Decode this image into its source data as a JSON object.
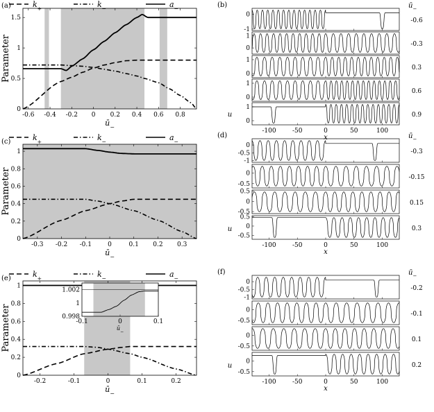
{
  "figure": {
    "panels": [
      {
        "id": "a",
        "panel_label": "(a)",
        "legend": [
          "k_+",
          "k_-",
          "a_-"
        ],
        "ylabel": "Parameter",
        "xlabel": "ū_-",
        "xticks": [
          "-0.6",
          "-0.4",
          "-0.2",
          "0",
          "0.2",
          "0.4",
          "0.6",
          "0.8"
        ],
        "yticks": [
          "0",
          "0.5",
          "1",
          "1.5"
        ]
      },
      {
        "id": "c",
        "panel_label": "(c)",
        "legend": [
          "k_+",
          "k_-",
          "a_-"
        ],
        "ylabel": "Parameter",
        "xlabel": "ū_-",
        "xticks": [
          "-0.3",
          "-0.2",
          "-0.1",
          "0",
          "0.1",
          "0.2",
          "0.3"
        ],
        "yticks": [
          "0",
          "0.2",
          "0.4",
          "0.6",
          "0.8",
          "1"
        ]
      },
      {
        "id": "e",
        "panel_label": "(e)",
        "legend": [
          "k_+",
          "k_-",
          "a_-"
        ],
        "ylabel": "Parameter",
        "xlabel": "ū_-",
        "xticks": [
          "-0.2",
          "-0.1",
          "0",
          "0.1",
          "0.2"
        ],
        "yticks": [
          "0",
          "0.2",
          "0.4",
          "0.6",
          "0.8",
          "1"
        ],
        "inset": {
          "xticks": [
            "-0.1",
            "0",
            "0.1"
          ],
          "yticks": [
            "0.998",
            "1",
            "1.002"
          ],
          "xlabel": "ū_-"
        }
      },
      {
        "id": "b",
        "panel_label": "(b)",
        "header": "ū_-",
        "ylabel": "u",
        "xlabel": "x",
        "xticks": [
          "-100",
          "-50",
          "0",
          "50",
          "100"
        ],
        "rows": [
          "-0.6",
          "-0.3",
          "0.3",
          "0.6",
          "0.9"
        ]
      },
      {
        "id": "d",
        "panel_label": "(d)",
        "header": "ū_-",
        "ylabel": "u",
        "xlabel": "x",
        "xticks": [
          "-100",
          "-50",
          "0",
          "50",
          "100"
        ],
        "rows": [
          "-0.3",
          "-0.15",
          "0.15",
          "0.3"
        ]
      },
      {
        "id": "f",
        "panel_label": "(f)",
        "header": "ū_-",
        "ylabel": "u",
        "xlabel": "x",
        "xticks": [
          "-100",
          "-50",
          "0",
          "50",
          "100"
        ],
        "rows": [
          "-0.2",
          "-0.1",
          "0.1",
          "0.2"
        ]
      }
    ]
  },
  "chart_data": [
    {
      "panel": "(a)",
      "type": "line",
      "xlabel": "ū_-",
      "ylabel": "Parameter",
      "xlim": [
        -0.65,
        0.95
      ],
      "ylim": [
        0,
        1.65
      ],
      "shaded_intervals": [
        [
          -0.45,
          -0.41
        ],
        [
          -0.3,
          0.47
        ],
        [
          0.61,
          0.68
        ]
      ],
      "series": [
        {
          "name": "k_+",
          "style": "dashed",
          "x": [
            -0.65,
            -0.3,
            -0.2,
            -0.1,
            0.0,
            0.1,
            0.2,
            0.3,
            0.4,
            0.47,
            0.6,
            0.8,
            0.95
          ],
          "y": [
            0.0,
            0.45,
            0.52,
            0.6,
            0.67,
            0.72,
            0.76,
            0.79,
            0.8,
            0.8,
            0.8,
            0.8,
            0.8
          ]
        },
        {
          "name": "k_-",
          "style": "dashdot",
          "x": [
            -0.65,
            -0.4,
            -0.3,
            -0.2,
            -0.1,
            0.0,
            0.1,
            0.2,
            0.3,
            0.4,
            0.47,
            0.6,
            0.7,
            0.8,
            0.9,
            0.95
          ],
          "y": [
            0.72,
            0.72,
            0.72,
            0.71,
            0.7,
            0.68,
            0.65,
            0.62,
            0.58,
            0.54,
            0.5,
            0.43,
            0.33,
            0.22,
            0.1,
            0.0
          ]
        },
        {
          "name": "a_-",
          "style": "solid",
          "x": [
            -0.65,
            -0.35,
            -0.3,
            -0.25,
            -0.2,
            -0.1,
            0.0,
            0.1,
            0.2,
            0.3,
            0.4,
            0.45,
            0.5,
            0.6,
            0.7,
            0.95
          ],
          "y": [
            0.66,
            0.66,
            0.66,
            0.63,
            0.7,
            0.82,
            0.97,
            1.11,
            1.25,
            1.38,
            1.5,
            1.55,
            1.5,
            1.5,
            1.5,
            1.5
          ]
        }
      ]
    },
    {
      "panel": "(c)",
      "type": "line",
      "xlabel": "ū_-",
      "ylabel": "Parameter",
      "xlim": [
        -0.36,
        0.36
      ],
      "ylim": [
        0,
        1.08
      ],
      "shaded_intervals": [
        [
          -0.36,
          0.36
        ]
      ],
      "series": [
        {
          "name": "k_+",
          "style": "dashed",
          "x": [
            -0.36,
            -0.2,
            -0.1,
            0.0,
            0.05,
            0.1,
            0.36
          ],
          "y": [
            0.0,
            0.21,
            0.32,
            0.4,
            0.43,
            0.45,
            0.45
          ]
        },
        {
          "name": "k_-",
          "style": "dashdot",
          "x": [
            -0.36,
            -0.1,
            -0.05,
            0.0,
            0.1,
            0.2,
            0.3,
            0.36
          ],
          "y": [
            0.45,
            0.45,
            0.43,
            0.4,
            0.32,
            0.21,
            0.08,
            0.0
          ]
        },
        {
          "name": "a_-",
          "style": "solid",
          "x": [
            -0.36,
            -0.15,
            -0.1,
            -0.05,
            0.0,
            0.05,
            0.1,
            0.36
          ],
          "y": [
            1.03,
            1.03,
            1.03,
            1.01,
            0.99,
            0.975,
            0.97,
            0.97
          ]
        }
      ]
    },
    {
      "panel": "(e)",
      "type": "line",
      "xlabel": "ū_-",
      "ylabel": "Parameter",
      "xlim": [
        -0.25,
        0.26
      ],
      "ylim": [
        0,
        1.05
      ],
      "shaded_intervals": [
        [
          -0.07,
          0.065
        ]
      ],
      "series": [
        {
          "name": "k_+",
          "style": "dashed",
          "x": [
            -0.25,
            -0.15,
            -0.07,
            0.0,
            0.04,
            0.065,
            0.26
          ],
          "y": [
            0.0,
            0.13,
            0.24,
            0.29,
            0.31,
            0.32,
            0.32
          ]
        },
        {
          "name": "k_-",
          "style": "dashdot",
          "x": [
            -0.25,
            -0.07,
            -0.03,
            0.0,
            0.065,
            0.1,
            0.2,
            0.26
          ],
          "y": [
            0.32,
            0.32,
            0.31,
            0.29,
            0.24,
            0.2,
            0.07,
            0.0
          ]
        },
        {
          "name": "a_-",
          "style": "solid",
          "x": [
            -0.25,
            0.26
          ],
          "y": [
            1.0,
            1.0
          ]
        }
      ],
      "inset": {
        "xlim": [
          -0.1,
          0.1
        ],
        "ylim": [
          0.998,
          1.003
        ],
        "shaded_intervals": [
          [
            -0.07,
            0.065
          ]
        ],
        "x": [
          -0.1,
          -0.05,
          -0.03,
          -0.01,
          0.01,
          0.03,
          0.05,
          0.065,
          0.1
        ],
        "y": [
          0.9986,
          0.9986,
          0.999,
          0.9995,
          1.0004,
          1.0012,
          1.0017,
          1.0018,
          1.0018
        ]
      }
    },
    {
      "panel": "(b)",
      "type": "line",
      "xlabel": "x",
      "ylabel": "u",
      "xlim": [
        -130,
        130
      ],
      "rows": [
        {
          "u_bar": -0.6,
          "ylim": [
            -1.1,
            0.4
          ],
          "yticks": [
            0,
            -1
          ],
          "left_period": 9.3,
          "right": "flat",
          "right_level": 0.1,
          "right_dips": [
            100
          ]
        },
        {
          "u_bar": -0.3,
          "ylim": [
            -0.5,
            1.3
          ],
          "yticks": [
            1,
            0
          ],
          "left_period": 11.5,
          "right_period": 13.5,
          "oscillate_sides": "both"
        },
        {
          "u_bar": 0.3,
          "ylim": [
            -0.3,
            1.3
          ],
          "yticks": [
            1,
            0
          ],
          "left_period": 13.5,
          "right_period": 11.5,
          "oscillate_sides": "both"
        },
        {
          "u_bar": 0.6,
          "ylim": [
            -0.3,
            1.3
          ],
          "yticks": [
            1,
            0
          ],
          "left_period": 13.5,
          "right_period": 9.5,
          "oscillate_sides": "both"
        },
        {
          "u_bar": 0.9,
          "ylim": [
            -0.3,
            1.3
          ],
          "yticks": [
            1,
            0
          ],
          "left": "flat",
          "left_level": 1.0,
          "left_dips": [
            -92
          ],
          "right_period": 9.3
        }
      ]
    },
    {
      "panel": "(d)",
      "type": "line",
      "xlabel": "x",
      "ylabel": "u",
      "xlim": [
        -130,
        130
      ],
      "rows": [
        {
          "u_bar": -0.3,
          "ylim": [
            -1.1,
            0.4
          ],
          "yticks": [
            0,
            -0.5,
            -1
          ],
          "left_period": 14.5,
          "right": "flat",
          "right_level": 0.1,
          "right_dips": [
            87
          ]
        },
        {
          "u_bar": -0.15,
          "ylim": [
            -0.7,
            0.4
          ],
          "yticks": [
            0,
            -0.5
          ],
          "left_period": 16,
          "right_period": 18,
          "oscillate_sides": "both"
        },
        {
          "u_bar": 0.15,
          "ylim": [
            -0.6,
            0.55
          ],
          "yticks": [
            0.5,
            0,
            -0.5
          ],
          "left_period": 18,
          "right_period": 16,
          "oscillate_sides": "both"
        },
        {
          "u_bar": 0.3,
          "ylim": [
            -0.7,
            0.55
          ],
          "yticks": [
            0.5,
            0,
            -0.5
          ],
          "left": "flat",
          "left_level": 0.45,
          "left_dips": [
            -90
          ],
          "right_period": 14.5
        }
      ]
    },
    {
      "panel": "(f)",
      "type": "line",
      "xlabel": "x",
      "ylabel": "u",
      "xlim": [
        -130,
        130
      ],
      "rows": [
        {
          "u_bar": -0.2,
          "ylim": [
            -1.1,
            0.4
          ],
          "yticks": [
            0,
            -0.5,
            -1
          ],
          "left_period": 15,
          "right": "flat",
          "right_level": 0.1,
          "right_dips": [
            90
          ]
        },
        {
          "u_bar": -0.1,
          "ylim": [
            -0.7,
            0.4
          ],
          "yticks": [
            0,
            -0.5
          ],
          "left_period": 17,
          "right_period": 18.5,
          "oscillate_sides": "both"
        },
        {
          "u_bar": 0.1,
          "ylim": [
            -0.7,
            0.4
          ],
          "yticks": [
            0,
            -0.5
          ],
          "left_period": 18.5,
          "right_period": 17,
          "oscillate_sides": "both"
        },
        {
          "u_bar": 0.2,
          "ylim": [
            -0.7,
            0.4
          ],
          "yticks": [
            0,
            -0.5
          ],
          "left": "flat",
          "left_level": 0.25,
          "left_dips": [
            -90
          ],
          "right_period": 15
        }
      ]
    }
  ]
}
